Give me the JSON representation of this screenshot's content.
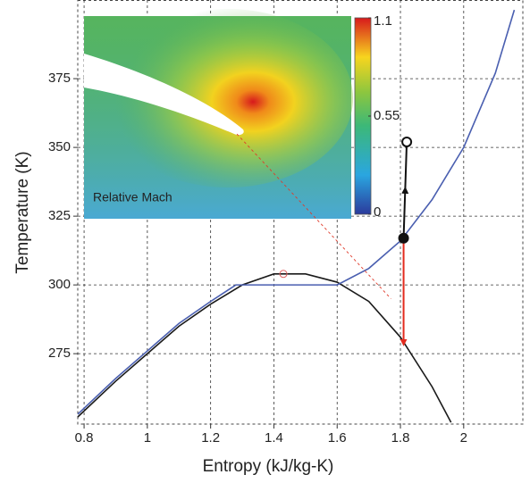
{
  "chart_data": {
    "type": "line",
    "x_label": "Entropy (kJ/kg-K)",
    "y_label": "Temperature (K)",
    "xlim": [
      0.78,
      2.187
    ],
    "ylim": [
      249.4,
      403.6
    ],
    "xticks": [
      0.8,
      1,
      1.2,
      1.4,
      1.6,
      1.8,
      2
    ],
    "yticks": [
      275,
      300,
      325,
      350,
      375
    ],
    "grid": true,
    "grid_style": "dashed",
    "series": [
      {
        "color": "#1a1a1a",
        "width": 1.6,
        "x": [
          0.78,
          0.9,
          1.0,
          1.1,
          1.2,
          1.3,
          1.4,
          1.5,
          1.6,
          1.7,
          1.8,
          1.9,
          1.96
        ],
        "values": [
          252,
          265,
          275,
          285,
          293,
          300,
          304,
          304,
          301,
          294,
          281,
          263,
          250
        ]
      },
      {
        "color": "#4a5fb0",
        "width": 1.6,
        "x": [
          0.78,
          0.9,
          1.0,
          1.1,
          1.2,
          1.28,
          1.4,
          1.5,
          1.6,
          1.7,
          1.8,
          1.9,
          2.0,
          2.1,
          2.16
        ],
        "values": [
          253,
          266,
          276,
          286,
          294,
          300,
          300,
          300,
          300,
          306,
          316,
          331,
          350,
          377,
          400
        ]
      },
      {
        "color": "#e03a2a",
        "width": 0.9,
        "dashed": true,
        "x": [
          1.283,
          1.77
        ],
        "values": [
          354.9,
          295
        ]
      },
      {
        "color": "#e32b1e",
        "width": 2,
        "arrow": "end",
        "x": [
          1.81,
          1.81
        ],
        "values": [
          317,
          279
        ]
      },
      {
        "color": "#111111",
        "width": 2,
        "arrow": "middle",
        "point_markers": [
          "filled",
          "open"
        ],
        "x": [
          1.81,
          1.82
        ],
        "values": [
          317,
          352
        ]
      },
      {
        "color": "#e06060",
        "width": 1,
        "point_markers": [
          "open"
        ],
        "line": false,
        "x": [
          1.43
        ],
        "values": [
          304
        ]
      }
    ],
    "inset": {
      "label": "Relative Mach",
      "colorbar_lim": [
        0,
        1.1
      ],
      "colorbar_ticks": [
        0,
        0.55,
        1.1
      ]
    }
  }
}
